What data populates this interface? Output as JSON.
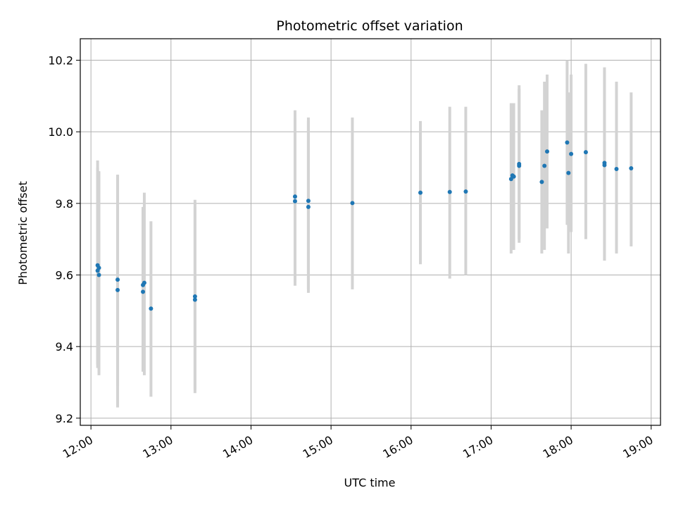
{
  "chart_data": {
    "type": "scatter",
    "title": "Photometric offset variation",
    "xlabel": "UTC time",
    "ylabel": "Photometric offset",
    "x_tick_labels": [
      "12:00",
      "13:00",
      "14:00",
      "15:00",
      "16:00",
      "17:00",
      "18:00",
      "19:00"
    ],
    "y_tick_labels": [
      "9.2",
      "9.4",
      "9.6",
      "9.8",
      "10.0",
      "10.2"
    ],
    "y_ticks": [
      9.2,
      9.4,
      9.6,
      9.8,
      10.0,
      10.2
    ],
    "xlim": [
      "11:52",
      "19:07"
    ],
    "ylim": [
      9.18,
      10.26
    ],
    "grid": true,
    "marker_color": "#1f77b4",
    "errorbar_color": "#d3d3d3",
    "points": [
      {
        "x": "12:05",
        "y": 9.627,
        "err_low": 9.34,
        "err_high": 9.92
      },
      {
        "x": "12:05",
        "y": 9.612,
        "err_low": 9.35,
        "err_high": 9.9
      },
      {
        "x": "12:06",
        "y": 9.62,
        "err_low": 9.33,
        "err_high": 9.89
      },
      {
        "x": "12:06",
        "y": 9.6,
        "err_low": 9.32,
        "err_high": 9.88
      },
      {
        "x": "12:20",
        "y": 9.587,
        "err_low": 9.29,
        "err_high": 9.88
      },
      {
        "x": "12:20",
        "y": 9.558,
        "err_low": 9.23,
        "err_high": 9.88
      },
      {
        "x": "12:39",
        "y": 9.572,
        "err_low": 9.33,
        "err_high": 9.79
      },
      {
        "x": "12:39",
        "y": 9.553,
        "err_low": 9.33,
        "err_high": 9.78
      },
      {
        "x": "12:40",
        "y": 9.578,
        "err_low": 9.32,
        "err_high": 9.83
      },
      {
        "x": "12:45",
        "y": 9.506,
        "err_low": 9.26,
        "err_high": 9.75
      },
      {
        "x": "13:18",
        "y": 9.54,
        "err_low": 9.27,
        "err_high": 9.81
      },
      {
        "x": "13:18",
        "y": 9.531,
        "err_low": 9.28,
        "err_high": 9.79
      },
      {
        "x": "14:33",
        "y": 9.819,
        "err_low": 9.57,
        "err_high": 10.06
      },
      {
        "x": "14:33",
        "y": 9.806,
        "err_low": 9.58,
        "err_high": 10.04
      },
      {
        "x": "14:43",
        "y": 9.807,
        "err_low": 9.56,
        "err_high": 10.04
      },
      {
        "x": "14:43",
        "y": 9.79,
        "err_low": 9.55,
        "err_high": 10.03
      },
      {
        "x": "15:16",
        "y": 9.801,
        "err_low": 9.56,
        "err_high": 10.04
      },
      {
        "x": "16:07",
        "y": 9.83,
        "err_low": 9.63,
        "err_high": 10.03
      },
      {
        "x": "16:29",
        "y": 9.832,
        "err_low": 9.59,
        "err_high": 10.07
      },
      {
        "x": "16:41",
        "y": 9.833,
        "err_low": 9.6,
        "err_high": 10.07
      },
      {
        "x": "17:15",
        "y": 9.868,
        "err_low": 9.66,
        "err_high": 10.08
      },
      {
        "x": "17:16",
        "y": 9.878,
        "err_low": 9.67,
        "err_high": 10.08
      },
      {
        "x": "17:17",
        "y": 9.875,
        "err_low": 9.67,
        "err_high": 10.08
      },
      {
        "x": "17:21",
        "y": 9.91,
        "err_low": 9.69,
        "err_high": 10.13
      },
      {
        "x": "17:21",
        "y": 9.905,
        "err_low": 9.7,
        "err_high": 10.12
      },
      {
        "x": "17:38",
        "y": 9.86,
        "err_low": 9.66,
        "err_high": 10.06
      },
      {
        "x": "17:40",
        "y": 9.905,
        "err_low": 9.67,
        "err_high": 10.14
      },
      {
        "x": "17:42",
        "y": 9.945,
        "err_low": 9.73,
        "err_high": 10.16
      },
      {
        "x": "17:57",
        "y": 9.97,
        "err_low": 9.74,
        "err_high": 10.2
      },
      {
        "x": "17:58",
        "y": 9.885,
        "err_low": 9.66,
        "err_high": 10.11
      },
      {
        "x": "18:00",
        "y": 9.938,
        "err_low": 9.72,
        "err_high": 10.16
      },
      {
        "x": "18:11",
        "y": 9.943,
        "err_low": 9.7,
        "err_high": 10.19
      },
      {
        "x": "18:25",
        "y": 9.913,
        "err_low": 9.64,
        "err_high": 10.18
      },
      {
        "x": "18:25",
        "y": 9.907,
        "err_low": 9.64,
        "err_high": 10.17
      },
      {
        "x": "18:34",
        "y": 9.896,
        "err_low": 9.66,
        "err_high": 10.14
      },
      {
        "x": "18:45",
        "y": 9.898,
        "err_low": 9.68,
        "err_high": 10.11
      }
    ]
  }
}
